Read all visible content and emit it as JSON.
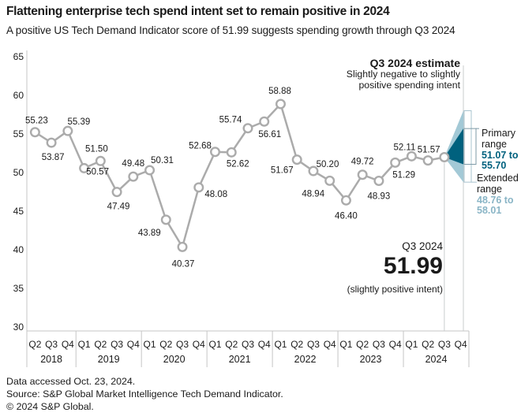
{
  "header": {
    "title": "Flattening enterprise tech spend intent set to remain positive in 2024",
    "subtitle": "A positive US Tech Demand Indicator score of 51.99 suggests spending growth through Q3 2024"
  },
  "colors": {
    "accent_dark_teal": "#00617e",
    "accent_light_teal": "#a3c9d6",
    "primary_value_text": "#00617e",
    "extended_value_text": "#8ab5c6",
    "series_line": "#ababab",
    "axis_line": "#c6c6c6",
    "estimate_line": "#c9cdce",
    "text": "#1a1a1a"
  },
  "chart_data": {
    "type": "line",
    "title": "Flattening enterprise tech spend intent set to remain positive in 2024",
    "xlabel": "",
    "ylabel": "",
    "ylim": [
      30,
      65
    ],
    "grid": false,
    "y_ticks": [
      65,
      60,
      55,
      50,
      45,
      40,
      35,
      30
    ],
    "x_axis": {
      "years": [
        {
          "label": "2018",
          "quarters": [
            "Q2",
            "Q3",
            "Q4"
          ]
        },
        {
          "label": "2019",
          "quarters": [
            "Q1",
            "Q2",
            "Q3",
            "Q4"
          ]
        },
        {
          "label": "2020",
          "quarters": [
            "Q1",
            "Q2",
            "Q3",
            "Q4"
          ]
        },
        {
          "label": "2021",
          "quarters": [
            "Q1",
            "Q2",
            "Q3",
            "Q4"
          ]
        },
        {
          "label": "2022",
          "quarters": [
            "Q1",
            "Q2",
            "Q3",
            "Q4"
          ]
        },
        {
          "label": "2023",
          "quarters": [
            "Q1",
            "Q2",
            "Q3",
            "Q4"
          ]
        },
        {
          "label": "2024",
          "quarters": [
            "Q1",
            "Q2",
            "Q3",
            "Q4"
          ]
        }
      ]
    },
    "series": [
      {
        "name": "US Tech Demand Indicator",
        "points": [
          {
            "year": "2018",
            "q": "Q2",
            "value": 55.23,
            "dx": 2,
            "dy": -15
          },
          {
            "year": "2018",
            "q": "Q3",
            "value": 53.87,
            "dx": 2,
            "dy": 18
          },
          {
            "year": "2018",
            "q": "Q4",
            "value": 55.39,
            "dx": 14,
            "dy": -12
          },
          {
            "year": "2019",
            "q": "Q1",
            "value": 50.57,
            "dx": 17,
            "dy": 4
          },
          {
            "year": "2019",
            "q": "Q2",
            "value": 51.5,
            "dx": -5,
            "dy": -16
          },
          {
            "year": "2019",
            "q": "Q3",
            "value": 47.49,
            "dx": 2,
            "dy": 18
          },
          {
            "year": "2019",
            "q": "Q4",
            "value": 49.48,
            "dx": 0,
            "dy": -17
          },
          {
            "year": "2020",
            "q": "Q1",
            "value": 50.31,
            "dx": 16,
            "dy": -13
          },
          {
            "year": "2020",
            "q": "Q2",
            "value": 43.89,
            "dx": -21,
            "dy": 16
          },
          {
            "year": "2020",
            "q": "Q3",
            "value": 40.37,
            "dx": 1,
            "dy": 21
          },
          {
            "year": "2020",
            "q": "Q4",
            "value": 48.08,
            "dx": 22,
            "dy": 8
          },
          {
            "year": "2021",
            "q": "Q1",
            "value": 52.68,
            "dx": -19,
            "dy": -8
          },
          {
            "year": "2021",
            "q": "Q2",
            "value": 52.62,
            "dx": 8,
            "dy": 14
          },
          {
            "year": "2021",
            "q": "Q3",
            "value": 55.74,
            "dx": -22,
            "dy": -11
          },
          {
            "year": "2021",
            "q": "Q4",
            "value": 56.61,
            "dx": 7,
            "dy": 16
          },
          {
            "year": "2022",
            "q": "Q1",
            "value": 58.88,
            "dx": -1,
            "dy": -17
          },
          {
            "year": "2022",
            "q": "Q2",
            "value": 51.67,
            "dx": -19,
            "dy": 13
          },
          {
            "year": "2022",
            "q": "Q3",
            "value": 50.2,
            "dx": 18,
            "dy": -9
          },
          {
            "year": "2022",
            "q": "Q4",
            "value": 48.94,
            "dx": -21,
            "dy": 16
          },
          {
            "year": "2023",
            "q": "Q1",
            "value": 46.4,
            "dx": 0,
            "dy": 19
          },
          {
            "year": "2023",
            "q": "Q2",
            "value": 49.72,
            "dx": 0,
            "dy": -17
          },
          {
            "year": "2023",
            "q": "Q3",
            "value": 48.93,
            "dx": 0,
            "dy": 19
          },
          {
            "year": "2023",
            "q": "Q4",
            "value": 51.29,
            "dx": 11,
            "dy": 15
          },
          {
            "year": "2024",
            "q": "Q1",
            "value": 52.11,
            "dx": -9,
            "dy": -12
          },
          {
            "year": "2024",
            "q": "Q2",
            "value": 51.57,
            "dx": 1,
            "dy": -14
          },
          {
            "year": "2024",
            "q": "Q3",
            "value": 51.99,
            "dx": 0,
            "dy": 0,
            "estimate": true,
            "show_label": false
          }
        ]
      }
    ],
    "estimate": {
      "heading": "Q3 2024 estimate",
      "description_line1": "Slightly negative to slightly",
      "description_line2": "positive spending intent",
      "callout_quarter": "Q3 2024",
      "callout_value": "51.99",
      "callout_note": "(slightly positive intent)",
      "primary_range": {
        "label": "Primary range",
        "value_text": "51.07 to 55.70",
        "low": 51.07,
        "high": 55.7
      },
      "extended_range": {
        "label": "Extended range",
        "value_text": "48.76 to 58.01",
        "low": 48.76,
        "high": 58.01
      }
    }
  },
  "footer": {
    "lines": [
      "Data accessed Oct. 23, 2024.",
      "Source: S&P Global Market Intelligence Tech Demand Indicator.",
      "© 2024 S&P Global."
    ]
  }
}
